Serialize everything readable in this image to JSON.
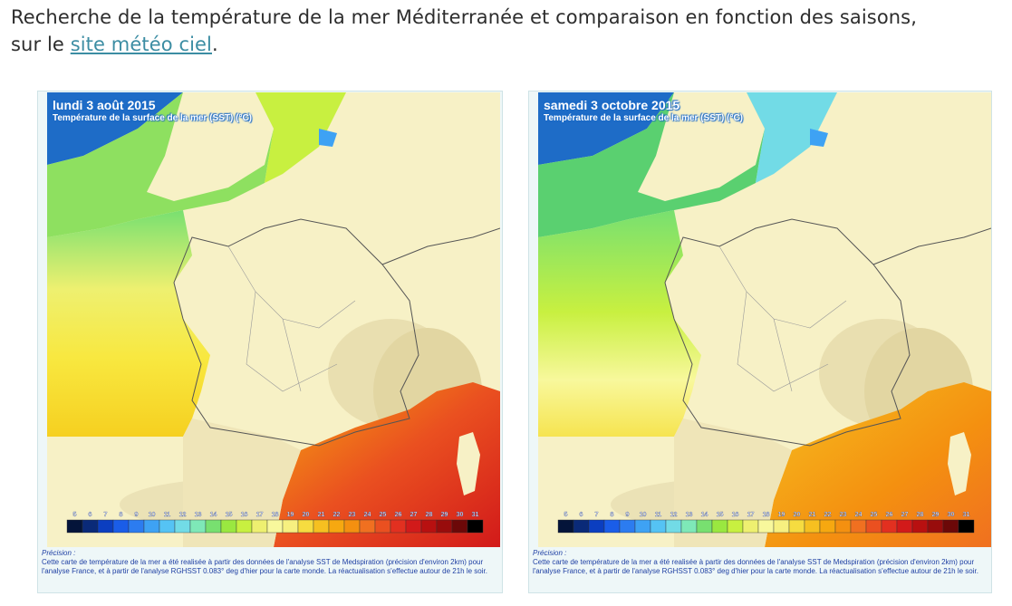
{
  "intro": {
    "line1": "Recherche de la température de la mer Méditerranée et comparaison en fonction des saisons,",
    "prefix": "sur le ",
    "link": "site météo ciel",
    "suffix": "."
  },
  "maps": [
    {
      "date": "lundi 3 août 2015",
      "subtitle": "Température de la surface de la mer (SST) (°C)"
    },
    {
      "date": "samedi 3 octobre 2015",
      "subtitle": "Température de la surface de la mer (SST) (°C)"
    }
  ],
  "legend": {
    "ticks": [
      "5",
      "6",
      "7",
      "8",
      "9",
      "10",
      "11",
      "12",
      "13",
      "14",
      "15",
      "16",
      "17",
      "18",
      "19",
      "20",
      "21",
      "22",
      "23",
      "24",
      "25",
      "26",
      "27",
      "28",
      "29",
      "30",
      "31"
    ],
    "colors": [
      "#04143a",
      "#0a2a78",
      "#0b3ec0",
      "#1a5de8",
      "#2c7cf0",
      "#3ea2f4",
      "#55c3f4",
      "#72dbe6",
      "#7ee8b8",
      "#78e070",
      "#9ae840",
      "#c8f040",
      "#eef070",
      "#f8f89c",
      "#f7f080",
      "#f6dc40",
      "#f6c020",
      "#f6a810",
      "#f49010",
      "#f07020",
      "#ea5020",
      "#e23020",
      "#d21a1a",
      "#b81010",
      "#980c0c",
      "#6c0808",
      "#000000"
    ]
  },
  "note": {
    "label": "Précision :",
    "text": "Cette carte de température de la mer a été realisée à partir des données de l'analyse SST de Medspiration (précision d'environ 2km) pour l'analyse France, et à partir de l'analyse RGHSST 0.083° deg d'hier pour la carte monde. La réactualisation s'effectue autour de 21h le soir."
  }
}
